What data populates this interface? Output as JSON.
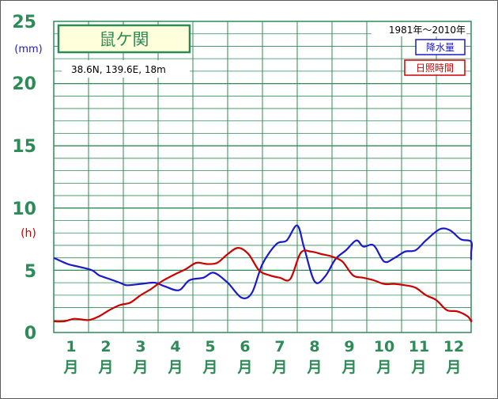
{
  "chart_data": {
    "type": "line",
    "station": "鼠ケ関",
    "coords": "38.6N,  139.6E,  18m",
    "period": "1981年〜2010年",
    "y_ticks": [
      "25",
      "20",
      "15",
      "10",
      "5",
      "0"
    ],
    "y_unit_precip": "(mm)",
    "y_unit_sun": "(h)",
    "categories_num": [
      "1",
      "2",
      "3",
      "4",
      "5",
      "6",
      "7",
      "8",
      "9",
      "10",
      "11",
      "12"
    ],
    "month_suffix": "月",
    "ylim": [
      0,
      25
    ],
    "grid": true,
    "legend_position": "top-right",
    "series": [
      {
        "name": "降水量",
        "color": "#1a1ac8",
        "points": [
          [
            0.5,
            6.0
          ],
          [
            0.9,
            5.5
          ],
          [
            1.2,
            5.3
          ],
          [
            1.6,
            5.0
          ],
          [
            1.8,
            4.6
          ],
          [
            2.1,
            4.3
          ],
          [
            2.4,
            4.0
          ],
          [
            2.6,
            3.8
          ],
          [
            3.0,
            3.9
          ],
          [
            3.4,
            4.0
          ],
          [
            3.7,
            3.7
          ],
          [
            4.1,
            3.4
          ],
          [
            4.4,
            4.2
          ],
          [
            4.8,
            4.4
          ],
          [
            5.1,
            4.8
          ],
          [
            5.5,
            4.0
          ],
          [
            5.9,
            2.8
          ],
          [
            6.2,
            3.2
          ],
          [
            6.5,
            5.5
          ],
          [
            6.9,
            7.1
          ],
          [
            7.2,
            7.4
          ],
          [
            7.5,
            8.6
          ],
          [
            7.7,
            6.8
          ],
          [
            8.0,
            4.1
          ],
          [
            8.3,
            4.5
          ],
          [
            8.6,
            5.9
          ],
          [
            8.9,
            6.6
          ],
          [
            9.2,
            7.4
          ],
          [
            9.4,
            6.9
          ],
          [
            9.7,
            7.0
          ],
          [
            10.0,
            5.7
          ],
          [
            10.3,
            6.0
          ],
          [
            10.6,
            6.5
          ],
          [
            10.9,
            6.6
          ],
          [
            11.2,
            7.4
          ],
          [
            11.6,
            8.3
          ],
          [
            11.9,
            8.2
          ],
          [
            12.2,
            7.5
          ],
          [
            12.5,
            7.3
          ],
          [
            12.8,
            6.4
          ],
          [
            13.0,
            5.9
          ],
          [
            13.3,
            6.0
          ]
        ]
      },
      {
        "name": "日照時間",
        "color": "#cc0000",
        "points": [
          [
            0.5,
            0.9
          ],
          [
            0.8,
            0.9
          ],
          [
            1.1,
            1.1
          ],
          [
            1.5,
            1.0
          ],
          [
            1.8,
            1.3
          ],
          [
            2.1,
            1.8
          ],
          [
            2.4,
            2.2
          ],
          [
            2.7,
            2.4
          ],
          [
            3.0,
            3.0
          ],
          [
            3.3,
            3.5
          ],
          [
            3.6,
            4.1
          ],
          [
            4.0,
            4.7
          ],
          [
            4.3,
            5.1
          ],
          [
            4.6,
            5.6
          ],
          [
            4.9,
            5.5
          ],
          [
            5.2,
            5.6
          ],
          [
            5.5,
            6.3
          ],
          [
            5.8,
            6.8
          ],
          [
            6.1,
            6.3
          ],
          [
            6.4,
            5.0
          ],
          [
            6.7,
            4.6
          ],
          [
            7.0,
            4.4
          ],
          [
            7.3,
            4.3
          ],
          [
            7.6,
            6.4
          ],
          [
            7.9,
            6.5
          ],
          [
            8.2,
            6.3
          ],
          [
            8.5,
            6.1
          ],
          [
            8.8,
            5.7
          ],
          [
            9.1,
            4.6
          ],
          [
            9.4,
            4.4
          ],
          [
            9.7,
            4.2
          ],
          [
            10.0,
            3.9
          ],
          [
            10.3,
            3.9
          ],
          [
            10.6,
            3.8
          ],
          [
            10.9,
            3.6
          ],
          [
            11.2,
            3.0
          ],
          [
            11.5,
            2.6
          ],
          [
            11.8,
            1.8
          ],
          [
            12.1,
            1.7
          ],
          [
            12.4,
            1.3
          ],
          [
            12.7,
            0.9
          ],
          [
            13.0,
            1.0
          ],
          [
            13.3,
            0.9
          ]
        ]
      }
    ]
  }
}
